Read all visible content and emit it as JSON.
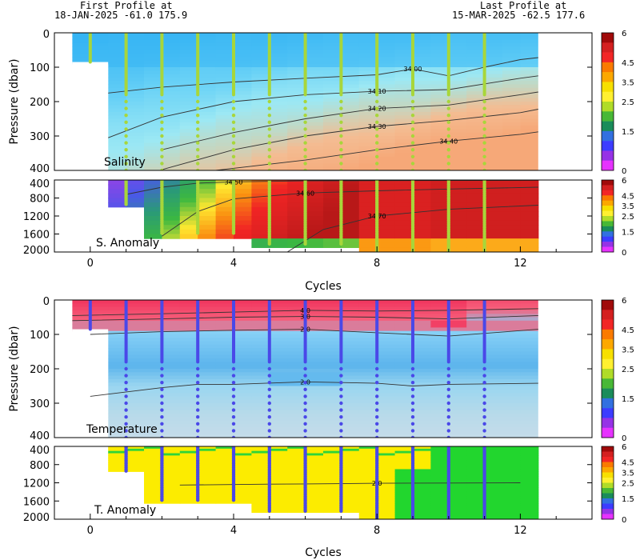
{
  "header": {
    "first_line1": "First Profile at",
    "first_line2": "18-JAN-2025   -61.0  175.9",
    "last_line1": "Last Profile at",
    "last_line2": "15-MAR-2025   -62.5  177.6"
  },
  "x_axis": {
    "label": "Cycles",
    "ticks": [
      0,
      4,
      8,
      12
    ],
    "range": [
      -1,
      14
    ]
  },
  "colorbar": {
    "ticks": [
      "6",
      "4.5",
      "3.5",
      "2.5",
      "1.5",
      "0"
    ],
    "colors": [
      "#a00a0a",
      "#d42020",
      "#f22626",
      "#fa7a00",
      "#fca800",
      "#f7e000",
      "#fff030",
      "#b0dc28",
      "#48b836",
      "#1a8c5a",
      "#3270e0",
      "#3c3cff",
      "#9632e6",
      "#e632ff"
    ]
  },
  "colors": {
    "salinity_dots": "#a8d63a",
    "temperature_dots": "#4a48e8",
    "contour": "#333333"
  },
  "chart_data": [
    {
      "type": "heatmap",
      "name": "Salinity",
      "ylabel": "Pressure (dbar)",
      "y_ticks": [
        "0",
        "100",
        "200",
        "300",
        "400"
      ],
      "ylim": [
        0,
        400
      ],
      "y_inverted": true,
      "contours": [
        {
          "label": "34.00",
          "points": [
            [
              0.5,
              175
            ],
            [
              2,
              158
            ],
            [
              4,
              143
            ],
            [
              6,
              132
            ],
            [
              8,
              122
            ],
            [
              9,
              105
            ],
            [
              10,
              125
            ],
            [
              11,
              100
            ],
            [
              12,
              78
            ],
            [
              12.5,
              72
            ]
          ]
        },
        {
          "label": "34.10",
          "points": [
            [
              0.5,
              305
            ],
            [
              2,
              245
            ],
            [
              4,
              200
            ],
            [
              6,
              180
            ],
            [
              8,
              170
            ],
            [
              10,
              165
            ],
            [
              12,
              132
            ],
            [
              12.5,
              125
            ]
          ]
        },
        {
          "label": "34.20",
          "points": [
            [
              2,
              340
            ],
            [
              4,
              290
            ],
            [
              6,
              250
            ],
            [
              8,
              220
            ],
            [
              10,
              210
            ],
            [
              12,
              180
            ],
            [
              12.5,
              172
            ]
          ]
        },
        {
          "label": "34.30",
          "points": [
            [
              2,
              398
            ],
            [
              4,
              340
            ],
            [
              6,
              300
            ],
            [
              8,
              272
            ],
            [
              10,
              255
            ],
            [
              12,
              232
            ],
            [
              12.5,
              222
            ]
          ]
        },
        {
          "label": "34.40",
          "points": [
            [
              3.5,
              400
            ],
            [
              6,
              370
            ],
            [
              8,
              340
            ],
            [
              10,
              315
            ],
            [
              12,
              295
            ],
            [
              12.5,
              288
            ]
          ]
        }
      ],
      "profiles": [
        0,
        1,
        2,
        3,
        4,
        5,
        6,
        7,
        8,
        9,
        10,
        11
      ]
    },
    {
      "type": "heatmap",
      "name": "S. Anomaly",
      "y_ticks": [
        "400",
        "800",
        "1200",
        "1600",
        "2000"
      ],
      "ylim": [
        400,
        2000
      ],
      "y_inverted": true,
      "contours": [
        {
          "label": "34.50",
          "points": [
            [
              1,
              720
            ],
            [
              2,
              560
            ],
            [
              3,
              470
            ],
            [
              4,
              440
            ],
            [
              6,
              420
            ],
            [
              9,
              412
            ],
            [
              12.5,
              405
            ]
          ]
        },
        {
          "label": "34.60",
          "points": [
            [
              2,
              1650
            ],
            [
              3,
              1100
            ],
            [
              4,
              820
            ],
            [
              6,
              690
            ],
            [
              8,
              640
            ],
            [
              10,
              600
            ],
            [
              12.5,
              560
            ]
          ]
        },
        {
          "label": "34.70",
          "points": [
            [
              5.5,
              2000
            ],
            [
              6.5,
              1500
            ],
            [
              8,
              1200
            ],
            [
              10,
              1050
            ],
            [
              12.5,
              960
            ]
          ]
        }
      ],
      "profiles": [
        1,
        2,
        3,
        4,
        5,
        6,
        7,
        8,
        9,
        10,
        11
      ]
    },
    {
      "type": "heatmap",
      "name": "Temperature",
      "ylabel": "Pressure (dbar)",
      "y_ticks": [
        "0",
        "100",
        "200",
        "300",
        "400"
      ],
      "ylim": [
        0,
        400
      ],
      "y_inverted": true,
      "contours": [
        {
          "label": "4.0",
          "points": [
            [
              -0.5,
              45
            ],
            [
              2,
              40
            ],
            [
              4,
              35
            ],
            [
              6,
              30
            ],
            [
              8,
              32
            ],
            [
              10,
              30
            ],
            [
              12.5,
              25
            ]
          ]
        },
        {
          "label": "3.0",
          "points": [
            [
              -0.5,
              60
            ],
            [
              2,
              55
            ],
            [
              4,
              50
            ],
            [
              6,
              48
            ],
            [
              8,
              50
            ],
            [
              10,
              55
            ],
            [
              12.5,
              45
            ]
          ]
        },
        {
          "label": "2.0",
          "points": [
            [
              0,
              100
            ],
            [
              2,
              92
            ],
            [
              4,
              88
            ],
            [
              6,
              85
            ],
            [
              8,
              95
            ],
            [
              10,
              105
            ],
            [
              12.5,
              85
            ]
          ]
        },
        {
          "label": "2.0",
          "points": [
            [
              0,
              280
            ],
            [
              2,
              255
            ],
            [
              3,
              245
            ],
            [
              4,
              245
            ],
            [
              6,
              238
            ],
            [
              8,
              242
            ],
            [
              9,
              250
            ],
            [
              10,
              245
            ],
            [
              12.5,
              242
            ]
          ]
        }
      ],
      "profiles": [
        0,
        1,
        2,
        3,
        4,
        5,
        6,
        7,
        8,
        9,
        10,
        11
      ]
    },
    {
      "type": "heatmap",
      "name": "T. Anomaly",
      "y_ticks": [
        "400",
        "800",
        "1200",
        "1600",
        "2000"
      ],
      "ylim": [
        400,
        2000
      ],
      "y_inverted": true,
      "contours": [
        {
          "label": "2.0",
          "points": [
            [
              2.5,
              1250
            ],
            [
              5,
              1230
            ],
            [
              7,
              1220
            ],
            [
              8,
              1210
            ],
            [
              10,
              1205
            ],
            [
              12,
              1200
            ]
          ]
        }
      ],
      "profiles": [
        1,
        2,
        3,
        4,
        5,
        6,
        7,
        8,
        9,
        10,
        11
      ]
    }
  ]
}
